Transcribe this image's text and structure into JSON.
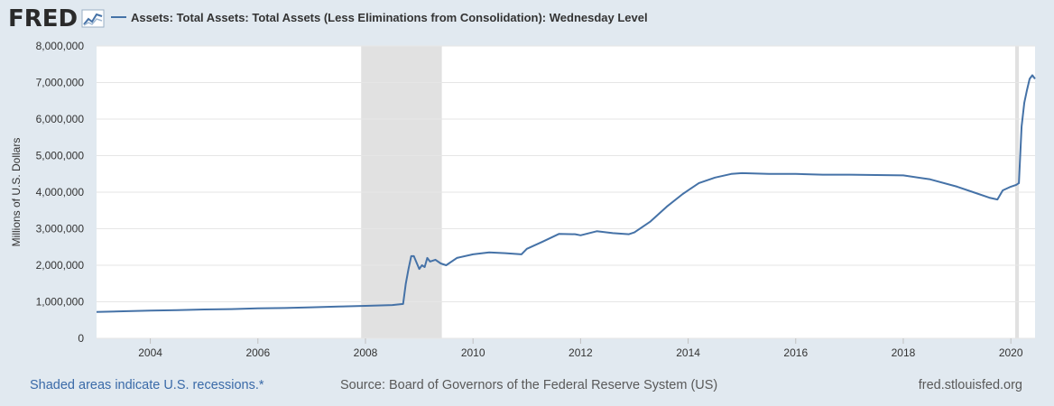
{
  "logo": {
    "text": "FRED",
    "icon": "chart-line-icon"
  },
  "legend": {
    "label": "Assets: Total Assets: Total Assets (Less Eliminations from Consolidation): Wednesday Level"
  },
  "footer": {
    "recession_note": "Shaded areas indicate U.S. recessions.*",
    "source": "Source: Board of Governors of the Federal Reserve System (US)",
    "url": "fred.stlouisfed.org"
  },
  "colors": {
    "line": "#4572a7",
    "recession": "#e1e1e1",
    "background": "#e1e9f0",
    "plot": "#ffffff",
    "link": "#3a6aa8"
  },
  "chart_data": {
    "type": "line",
    "title": "",
    "xlabel": "",
    "ylabel": "Millions of U.S. Dollars",
    "xlim": [
      2003.0,
      2020.45
    ],
    "ylim": [
      0,
      8000000
    ],
    "grid": true,
    "x_ticks": [
      2004,
      2006,
      2008,
      2010,
      2012,
      2014,
      2016,
      2018,
      2020
    ],
    "y_ticks": [
      {
        "value": 0,
        "label": "0"
      },
      {
        "value": 1000000,
        "label": "1,000,000"
      },
      {
        "value": 2000000,
        "label": "2,000,000"
      },
      {
        "value": 3000000,
        "label": "3,000,000"
      },
      {
        "value": 4000000,
        "label": "4,000,000"
      },
      {
        "value": 5000000,
        "label": "5,000,000"
      },
      {
        "value": 6000000,
        "label": "6,000,000"
      },
      {
        "value": 7000000,
        "label": "7,000,000"
      },
      {
        "value": 8000000,
        "label": "8,000,000"
      }
    ],
    "recessions": [
      {
        "start": 2007.92,
        "end": 2009.42
      },
      {
        "start": 2020.08,
        "end": 2020.15
      }
    ],
    "series": [
      {
        "name": "Assets: Total Assets: Total Assets (Less Eliminations from Consolidation): Wednesday Level",
        "x": [
          2003.0,
          2003.5,
          2004.0,
          2004.5,
          2005.0,
          2005.5,
          2006.0,
          2006.5,
          2007.0,
          2007.5,
          2008.0,
          2008.5,
          2008.7,
          2008.75,
          2008.8,
          2008.85,
          2008.9,
          2009.0,
          2009.05,
          2009.1,
          2009.15,
          2009.2,
          2009.3,
          2009.4,
          2009.5,
          2009.7,
          2010.0,
          2010.3,
          2010.6,
          2010.9,
          2011.0,
          2011.3,
          2011.6,
          2011.9,
          2012.0,
          2012.3,
          2012.6,
          2012.9,
          2013.0,
          2013.3,
          2013.6,
          2013.9,
          2014.2,
          2014.5,
          2014.8,
          2015.0,
          2015.5,
          2016.0,
          2016.5,
          2017.0,
          2017.5,
          2018.0,
          2018.5,
          2019.0,
          2019.3,
          2019.6,
          2019.75,
          2019.85,
          2020.0,
          2020.1,
          2020.15,
          2020.2,
          2020.25,
          2020.3,
          2020.35,
          2020.4,
          2020.45
        ],
        "values": [
          720000,
          740000,
          760000,
          770000,
          790000,
          800000,
          820000,
          830000,
          850000,
          870000,
          890000,
          910000,
          940000,
          1500000,
          1900000,
          2250000,
          2250000,
          1900000,
          2000000,
          1950000,
          2200000,
          2100000,
          2150000,
          2050000,
          2000000,
          2200000,
          2300000,
          2350000,
          2330000,
          2300000,
          2450000,
          2650000,
          2860000,
          2850000,
          2820000,
          2930000,
          2880000,
          2850000,
          2900000,
          3200000,
          3600000,
          3950000,
          4250000,
          4400000,
          4500000,
          4520000,
          4500000,
          4500000,
          4480000,
          4480000,
          4470000,
          4460000,
          4350000,
          4150000,
          4000000,
          3850000,
          3800000,
          4050000,
          4150000,
          4200000,
          4250000,
          5800000,
          6450000,
          6800000,
          7100000,
          7200000,
          7100000
        ]
      }
    ]
  }
}
